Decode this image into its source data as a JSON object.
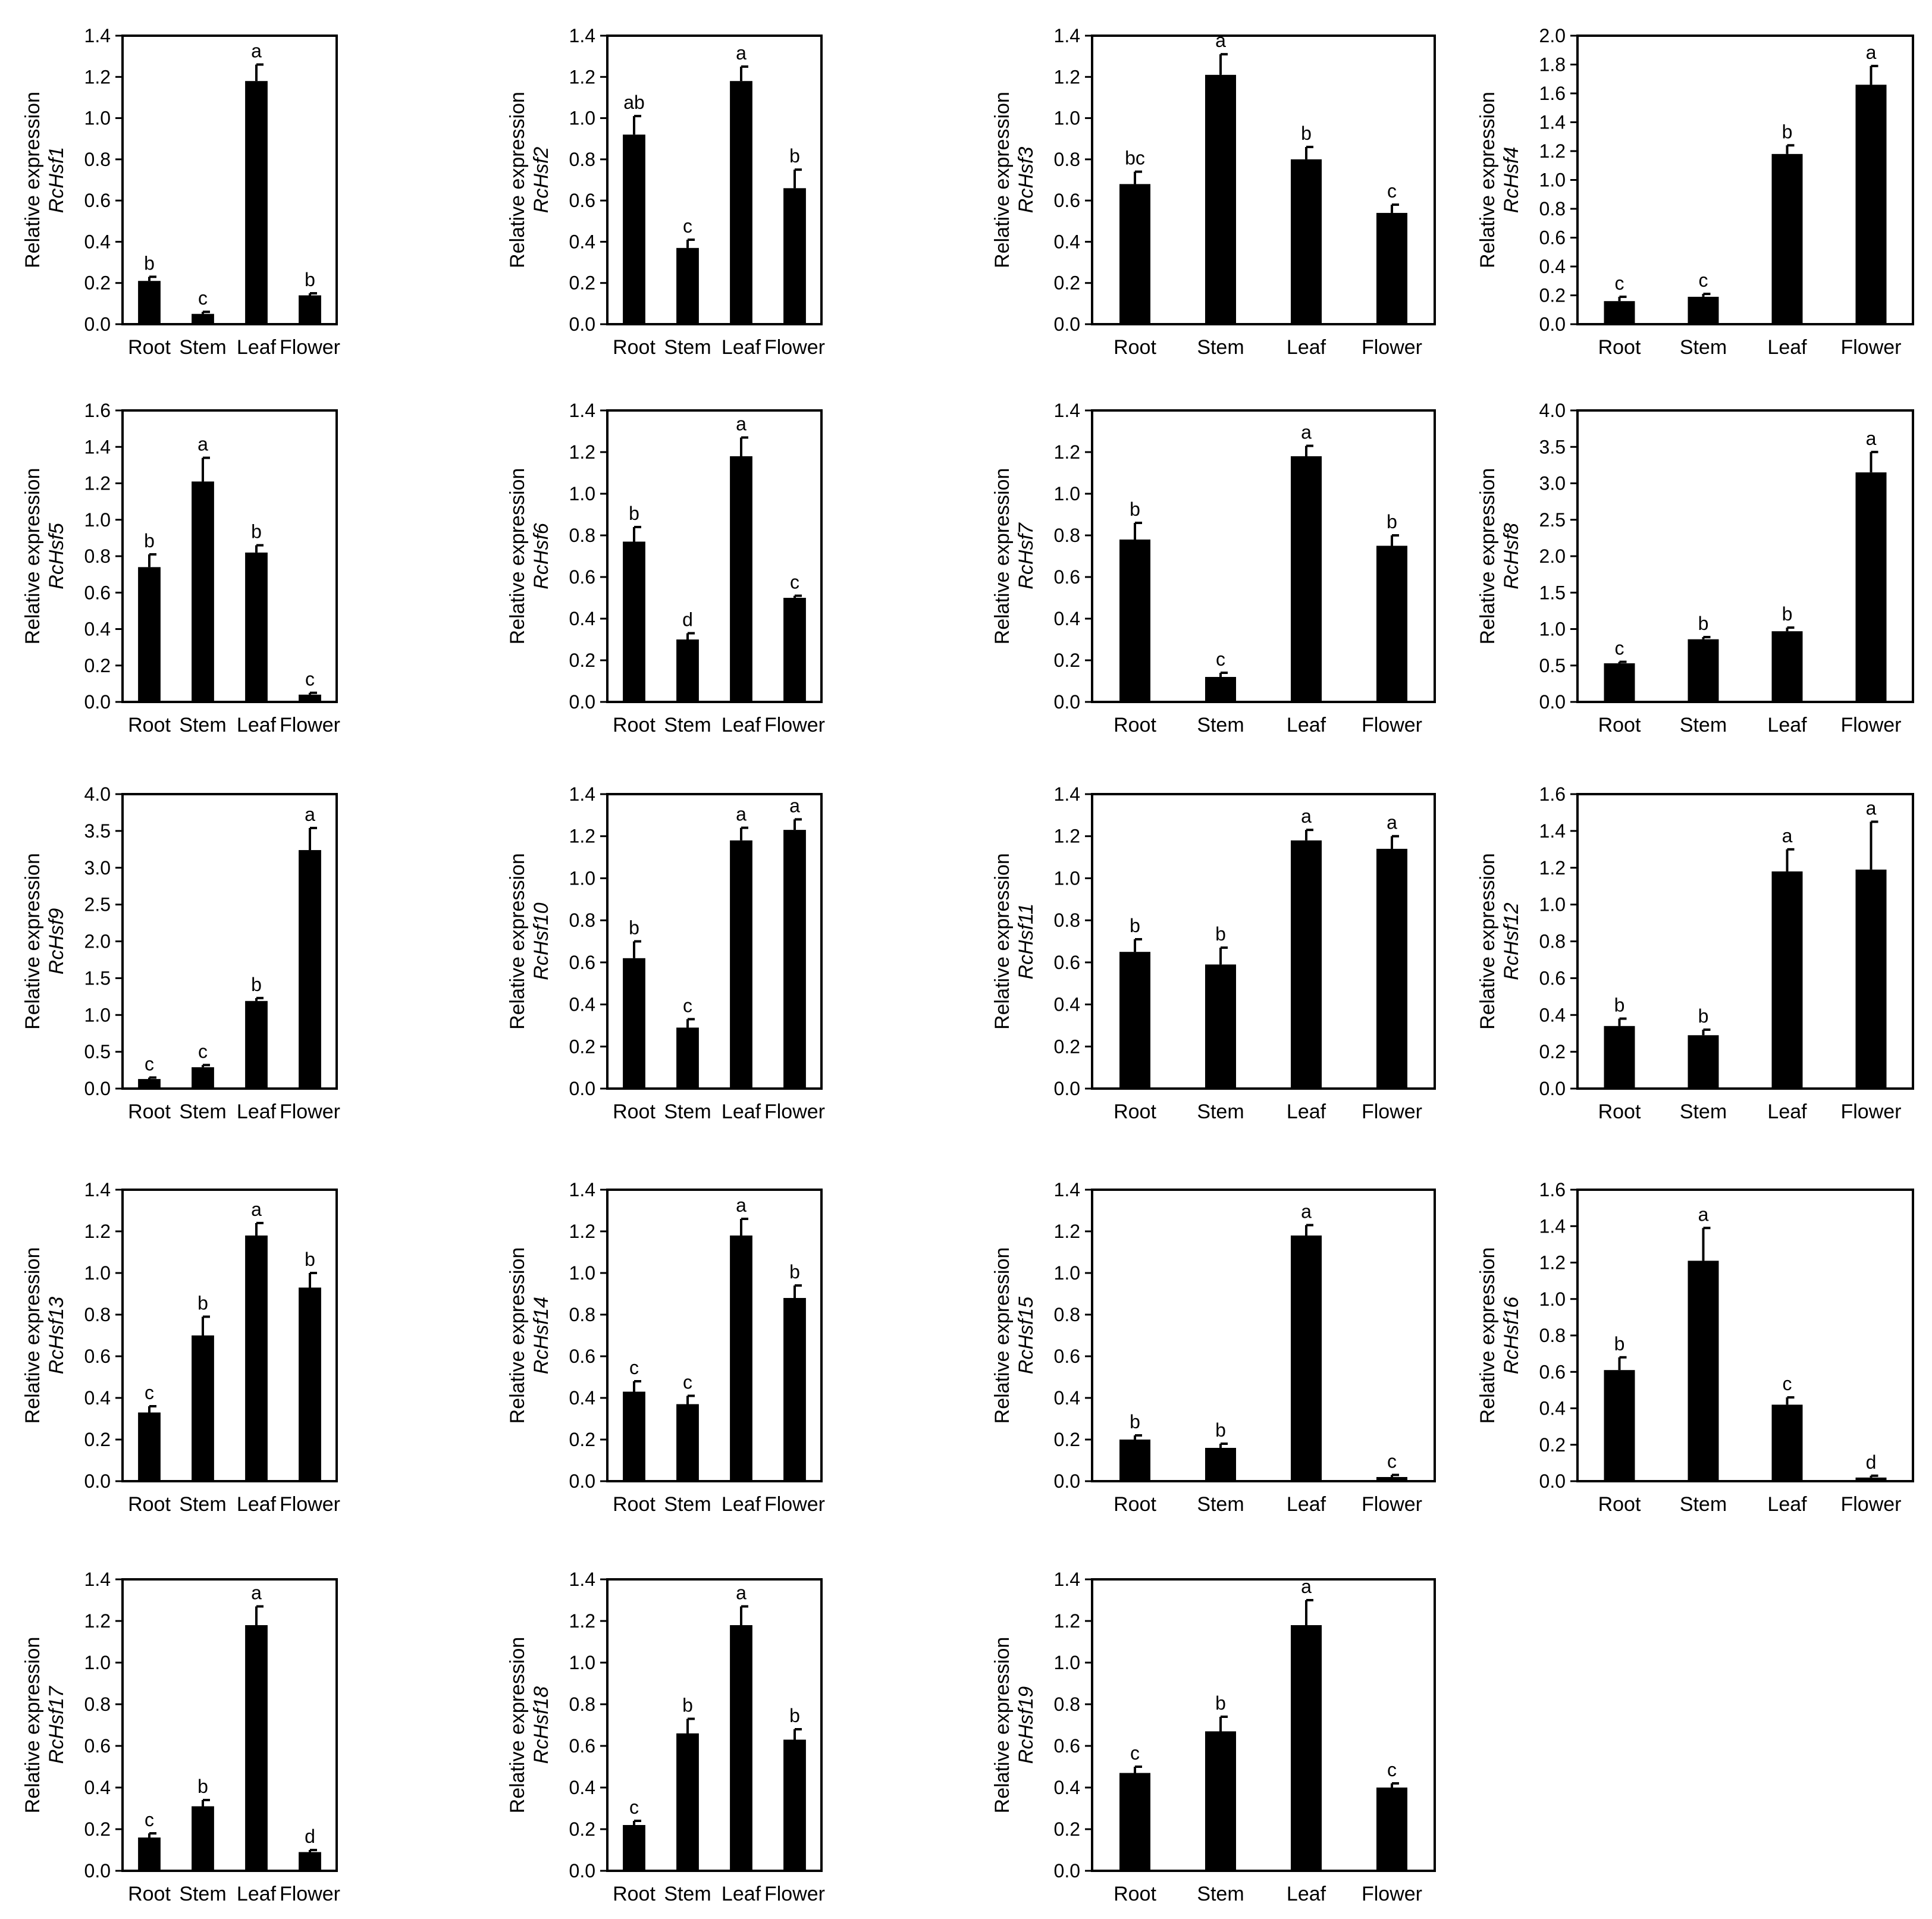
{
  "chart_data": [
    {
      "type": "bar",
      "gene": "RcHsf1",
      "ylabel_line1": "Relative expression",
      "ylabel_line2": "RcHsf1",
      "categories": [
        "Root",
        "Stem",
        "Leaf",
        "Flower"
      ],
      "values": [
        0.21,
        0.05,
        1.18,
        0.14
      ],
      "errors": [
        0.02,
        0.01,
        0.08,
        0.01
      ],
      "letters": [
        "b",
        "c",
        "a",
        "b"
      ],
      "ylim": [
        0,
        1.4
      ],
      "yticks": [
        "0.0",
        "0.2",
        "0.4",
        "0.6",
        "0.8",
        "1.0",
        "1.2",
        "1.4"
      ]
    },
    {
      "type": "bar",
      "gene": "RcHsf2",
      "ylabel_line1": "Relative expression",
      "ylabel_line2": "RcHsf2",
      "categories": [
        "Root",
        "Stem",
        "Leaf",
        "Flower"
      ],
      "values": [
        0.92,
        0.37,
        1.18,
        0.66
      ],
      "errors": [
        0.09,
        0.04,
        0.07,
        0.09
      ],
      "letters": [
        "ab",
        "c",
        "a",
        "b"
      ],
      "ylim": [
        0,
        1.4
      ],
      "yticks": [
        "0.0",
        "0.2",
        "0.4",
        "0.6",
        "0.8",
        "1.0",
        "1.2",
        "1.4"
      ]
    },
    {
      "type": "bar",
      "gene": "RcHsf3",
      "ylabel_line1": "Relative expression",
      "ylabel_line2": "RcHsf3",
      "categories": [
        "Root",
        "Stem",
        "Leaf",
        "Flower"
      ],
      "values": [
        0.68,
        1.21,
        0.8,
        0.54
      ],
      "errors": [
        0.06,
        0.1,
        0.06,
        0.04
      ],
      "letters": [
        "bc",
        "a",
        "b",
        "c"
      ],
      "ylim": [
        0,
        1.4
      ],
      "yticks": [
        "0.0",
        "0.2",
        "0.4",
        "0.6",
        "0.8",
        "1.0",
        "1.2",
        "1.4"
      ]
    },
    {
      "type": "bar",
      "gene": "RcHsf4",
      "ylabel_line1": "Relative expression",
      "ylabel_line2": "RcHsf4",
      "categories": [
        "Root",
        "Stem",
        "Leaf",
        "Flower"
      ],
      "values": [
        0.16,
        0.19,
        1.18,
        1.66
      ],
      "errors": [
        0.03,
        0.02,
        0.06,
        0.13
      ],
      "letters": [
        "c",
        "c",
        "b",
        "a"
      ],
      "ylim": [
        0,
        2.0
      ],
      "yticks": [
        "0.0",
        "0.2",
        "0.4",
        "0.6",
        "0.8",
        "1.0",
        "1.2",
        "1.4",
        "1.6",
        "1.8",
        "2.0"
      ]
    },
    {
      "type": "bar",
      "gene": "RcHsf5",
      "ylabel_line1": "Relative expression",
      "ylabel_line2": "RcHsf5",
      "categories": [
        "Root",
        "Stem",
        "Leaf",
        "Flower"
      ],
      "values": [
        0.74,
        1.21,
        0.82,
        0.04
      ],
      "errors": [
        0.07,
        0.13,
        0.04,
        0.01
      ],
      "letters": [
        "b",
        "a",
        "b",
        "c"
      ],
      "ylim": [
        0,
        1.6
      ],
      "yticks": [
        "0.0",
        "0.2",
        "0.4",
        "0.6",
        "0.8",
        "1.0",
        "1.2",
        "1.4",
        "1.6"
      ]
    },
    {
      "type": "bar",
      "gene": "RcHsf6",
      "ylabel_line1": "Relative expression",
      "ylabel_line2": "RcHsf6",
      "categories": [
        "Root",
        "Stem",
        "Leaf",
        "Flower"
      ],
      "values": [
        0.77,
        0.3,
        1.18,
        0.5
      ],
      "errors": [
        0.07,
        0.03,
        0.09,
        0.01
      ],
      "letters": [
        "b",
        "d",
        "a",
        "c"
      ],
      "ylim": [
        0,
        1.4
      ],
      "yticks": [
        "0.0",
        "0.2",
        "0.4",
        "0.6",
        "0.8",
        "1.0",
        "1.2",
        "1.4"
      ]
    },
    {
      "type": "bar",
      "gene": "RcHsf7",
      "ylabel_line1": "Relative expression",
      "ylabel_line2": "RcHsf7",
      "categories": [
        "Root",
        "Stem",
        "Leaf",
        "Flower"
      ],
      "values": [
        0.78,
        0.12,
        1.18,
        0.75
      ],
      "errors": [
        0.08,
        0.02,
        0.05,
        0.05
      ],
      "letters": [
        "b",
        "c",
        "a",
        "b"
      ],
      "ylim": [
        0,
        1.4
      ],
      "yticks": [
        "0.0",
        "0.2",
        "0.4",
        "0.6",
        "0.8",
        "1.0",
        "1.2",
        "1.4"
      ]
    },
    {
      "type": "bar",
      "gene": "RcHsf8",
      "ylabel_line1": "Relative expression",
      "ylabel_line2": "RcHsf8",
      "categories": [
        "Root",
        "Stem",
        "Leaf",
        "Flower"
      ],
      "values": [
        0.53,
        0.86,
        0.97,
        3.15
      ],
      "errors": [
        0.02,
        0.03,
        0.05,
        0.28
      ],
      "letters": [
        "c",
        "b",
        "b",
        "a"
      ],
      "ylim": [
        0,
        4.0
      ],
      "yticks": [
        "0.0",
        "0.5",
        "1.0",
        "1.5",
        "2.0",
        "2.5",
        "3.0",
        "3.5",
        "4.0"
      ]
    },
    {
      "type": "bar",
      "gene": "RcHsf9",
      "ylabel_line1": "Relative expression",
      "ylabel_line2": "RcHsf9",
      "categories": [
        "Root",
        "Stem",
        "Leaf",
        "Flower"
      ],
      "values": [
        0.13,
        0.29,
        1.19,
        3.24
      ],
      "errors": [
        0.02,
        0.03,
        0.04,
        0.3
      ],
      "letters": [
        "c",
        "c",
        "b",
        "a"
      ],
      "ylim": [
        0,
        4.0
      ],
      "yticks": [
        "0.0",
        "0.5",
        "1.0",
        "1.5",
        "2.0",
        "2.5",
        "3.0",
        "3.5",
        "4.0"
      ]
    },
    {
      "type": "bar",
      "gene": "RcHsf10",
      "ylabel_line1": "Relative expression",
      "ylabel_line2": "RcHsf10",
      "categories": [
        "Root",
        "Stem",
        "Leaf",
        "Flower"
      ],
      "values": [
        0.62,
        0.29,
        1.18,
        1.23
      ],
      "errors": [
        0.08,
        0.04,
        0.06,
        0.05
      ],
      "letters": [
        "b",
        "c",
        "a",
        "a"
      ],
      "ylim": [
        0,
        1.4
      ],
      "yticks": [
        "0.0",
        "0.2",
        "0.4",
        "0.6",
        "0.8",
        "1.0",
        "1.2",
        "1.4"
      ]
    },
    {
      "type": "bar",
      "gene": "RcHsf11",
      "ylabel_line1": "Relative expression",
      "ylabel_line2": "RcHsf11",
      "categories": [
        "Root",
        "Stem",
        "Leaf",
        "Flower"
      ],
      "values": [
        0.65,
        0.59,
        1.18,
        1.14
      ],
      "errors": [
        0.06,
        0.08,
        0.05,
        0.06
      ],
      "letters": [
        "b",
        "b",
        "a",
        "a"
      ],
      "ylim": [
        0,
        1.4
      ],
      "yticks": [
        "0.0",
        "0.2",
        "0.4",
        "0.6",
        "0.8",
        "1.0",
        "1.2",
        "1.4"
      ]
    },
    {
      "type": "bar",
      "gene": "RcHsf12",
      "ylabel_line1": "Relative expression",
      "ylabel_line2": "RcHsf12",
      "categories": [
        "Root",
        "Stem",
        "Leaf",
        "Flower"
      ],
      "values": [
        0.34,
        0.29,
        1.18,
        1.19
      ],
      "errors": [
        0.04,
        0.03,
        0.12,
        0.26
      ],
      "letters": [
        "b",
        "b",
        "a",
        "a"
      ],
      "ylim": [
        0,
        1.6
      ],
      "yticks": [
        "0.0",
        "0.2",
        "0.4",
        "0.6",
        "0.8",
        "1.0",
        "1.2",
        "1.4",
        "1.6"
      ]
    },
    {
      "type": "bar",
      "gene": "RcHsf13",
      "ylabel_line1": "Relative expression",
      "ylabel_line2": "RcHsf13",
      "categories": [
        "Root",
        "Stem",
        "Leaf",
        "Flower"
      ],
      "values": [
        0.33,
        0.7,
        1.18,
        0.93
      ],
      "errors": [
        0.03,
        0.09,
        0.06,
        0.07
      ],
      "letters": [
        "c",
        "b",
        "a",
        "b"
      ],
      "ylim": [
        0,
        1.4
      ],
      "yticks": [
        "0.0",
        "0.2",
        "0.4",
        "0.6",
        "0.8",
        "1.0",
        "1.2",
        "1.4"
      ]
    },
    {
      "type": "bar",
      "gene": "RcHsf14",
      "ylabel_line1": "Relative expression",
      "ylabel_line2": "RcHsf14",
      "categories": [
        "Root",
        "Stem",
        "Leaf",
        "Flower"
      ],
      "values": [
        0.43,
        0.37,
        1.18,
        0.88
      ],
      "errors": [
        0.05,
        0.04,
        0.08,
        0.06
      ],
      "letters": [
        "c",
        "c",
        "a",
        "b"
      ],
      "ylim": [
        0,
        1.4
      ],
      "yticks": [
        "0.0",
        "0.2",
        "0.4",
        "0.6",
        "0.8",
        "1.0",
        "1.2",
        "1.4"
      ]
    },
    {
      "type": "bar",
      "gene": "RcHsf15",
      "ylabel_line1": "Relative expression",
      "ylabel_line2": "RcHsf15",
      "categories": [
        "Root",
        "Stem",
        "Leaf",
        "Flower"
      ],
      "values": [
        0.2,
        0.16,
        1.18,
        0.02
      ],
      "errors": [
        0.02,
        0.02,
        0.05,
        0.01
      ],
      "letters": [
        "b",
        "b",
        "a",
        "c"
      ],
      "ylim": [
        0,
        1.4
      ],
      "yticks": [
        "0.0",
        "0.2",
        "0.4",
        "0.6",
        "0.8",
        "1.0",
        "1.2",
        "1.4"
      ]
    },
    {
      "type": "bar",
      "gene": "RcHsf16",
      "ylabel_line1": "Relative expression",
      "ylabel_line2": "RcHsf16",
      "categories": [
        "Root",
        "Stem",
        "Leaf",
        "Flower"
      ],
      "values": [
        0.61,
        1.21,
        0.42,
        0.02
      ],
      "errors": [
        0.07,
        0.18,
        0.04,
        0.01
      ],
      "letters": [
        "b",
        "a",
        "c",
        "d"
      ],
      "ylim": [
        0,
        1.6
      ],
      "yticks": [
        "0.0",
        "0.2",
        "0.4",
        "0.6",
        "0.8",
        "1.0",
        "1.2",
        "1.4",
        "1.6"
      ]
    },
    {
      "type": "bar",
      "gene": "RcHsf17",
      "ylabel_line1": "Relative expression",
      "ylabel_line2": "RcHsf17",
      "categories": [
        "Root",
        "Stem",
        "Leaf",
        "Flower"
      ],
      "values": [
        0.16,
        0.31,
        1.18,
        0.09
      ],
      "errors": [
        0.02,
        0.03,
        0.09,
        0.01
      ],
      "letters": [
        "c",
        "b",
        "a",
        "d"
      ],
      "ylim": [
        0,
        1.4
      ],
      "yticks": [
        "0.0",
        "0.2",
        "0.4",
        "0.6",
        "0.8",
        "1.0",
        "1.2",
        "1.4"
      ]
    },
    {
      "type": "bar",
      "gene": "RcHsf18",
      "ylabel_line1": "Relative expression",
      "ylabel_line2": "RcHsf18",
      "categories": [
        "Root",
        "Stem",
        "Leaf",
        "Flower"
      ],
      "values": [
        0.22,
        0.66,
        1.18,
        0.63
      ],
      "errors": [
        0.02,
        0.07,
        0.09,
        0.05
      ],
      "letters": [
        "c",
        "b",
        "a",
        "b"
      ],
      "ylim": [
        0,
        1.4
      ],
      "yticks": [
        "0.0",
        "0.2",
        "0.4",
        "0.6",
        "0.8",
        "1.0",
        "1.2",
        "1.4"
      ]
    },
    {
      "type": "bar",
      "gene": "RcHsf19",
      "ylabel_line1": "Relative expression",
      "ylabel_line2": "RcHsf19",
      "categories": [
        "Root",
        "Stem",
        "Leaf",
        "Flower"
      ],
      "values": [
        0.47,
        0.67,
        1.18,
        0.4
      ],
      "errors": [
        0.03,
        0.07,
        0.12,
        0.02
      ],
      "letters": [
        "c",
        "b",
        "a",
        "c"
      ],
      "ylim": [
        0,
        1.4
      ],
      "yticks": [
        "0.0",
        "0.2",
        "0.4",
        "0.6",
        "0.8",
        "1.0",
        "1.2",
        "1.4"
      ]
    }
  ],
  "colors": {
    "bar": "#000000",
    "frame": "#000000",
    "background": "#ffffff"
  }
}
